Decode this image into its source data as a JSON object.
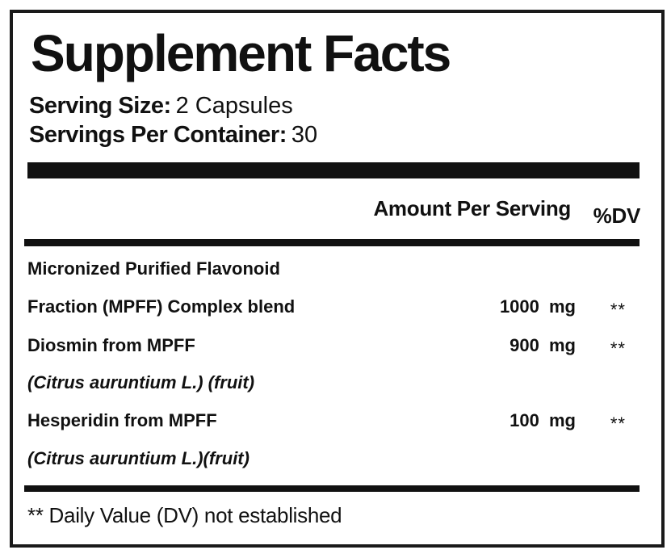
{
  "label": {
    "title": "Supplement Facts",
    "serving_size": {
      "label": "Serving Size:",
      "value": "2 Capsules"
    },
    "servings_per_container": {
      "label": "Servings Per Container:",
      "value": "30"
    }
  },
  "table": {
    "header": {
      "amount": "Amount Per Serving",
      "dv": "%DV"
    },
    "rows": [
      {
        "label": "Micronized Purified Flavonoid",
        "amount": "",
        "dv": ""
      },
      {
        "label": "Fraction (MPFF) Complex blend",
        "amount": "1000 mg",
        "dv": "**"
      },
      {
        "label": "Diosmin from MPFF",
        "amount": "900 mg",
        "dv": "**"
      },
      {
        "label": "(Citrus auruntium L.) (fruit)",
        "amount": "",
        "dv": ""
      },
      {
        "label": "Hesperidin from MPFF",
        "amount": "100 mg",
        "dv": "**"
      },
      {
        "label": "(Citrus auruntium L.)(fruit)",
        "amount": "",
        "dv": ""
      }
    ]
  },
  "footnote": "** Daily Value (DV) not established"
}
